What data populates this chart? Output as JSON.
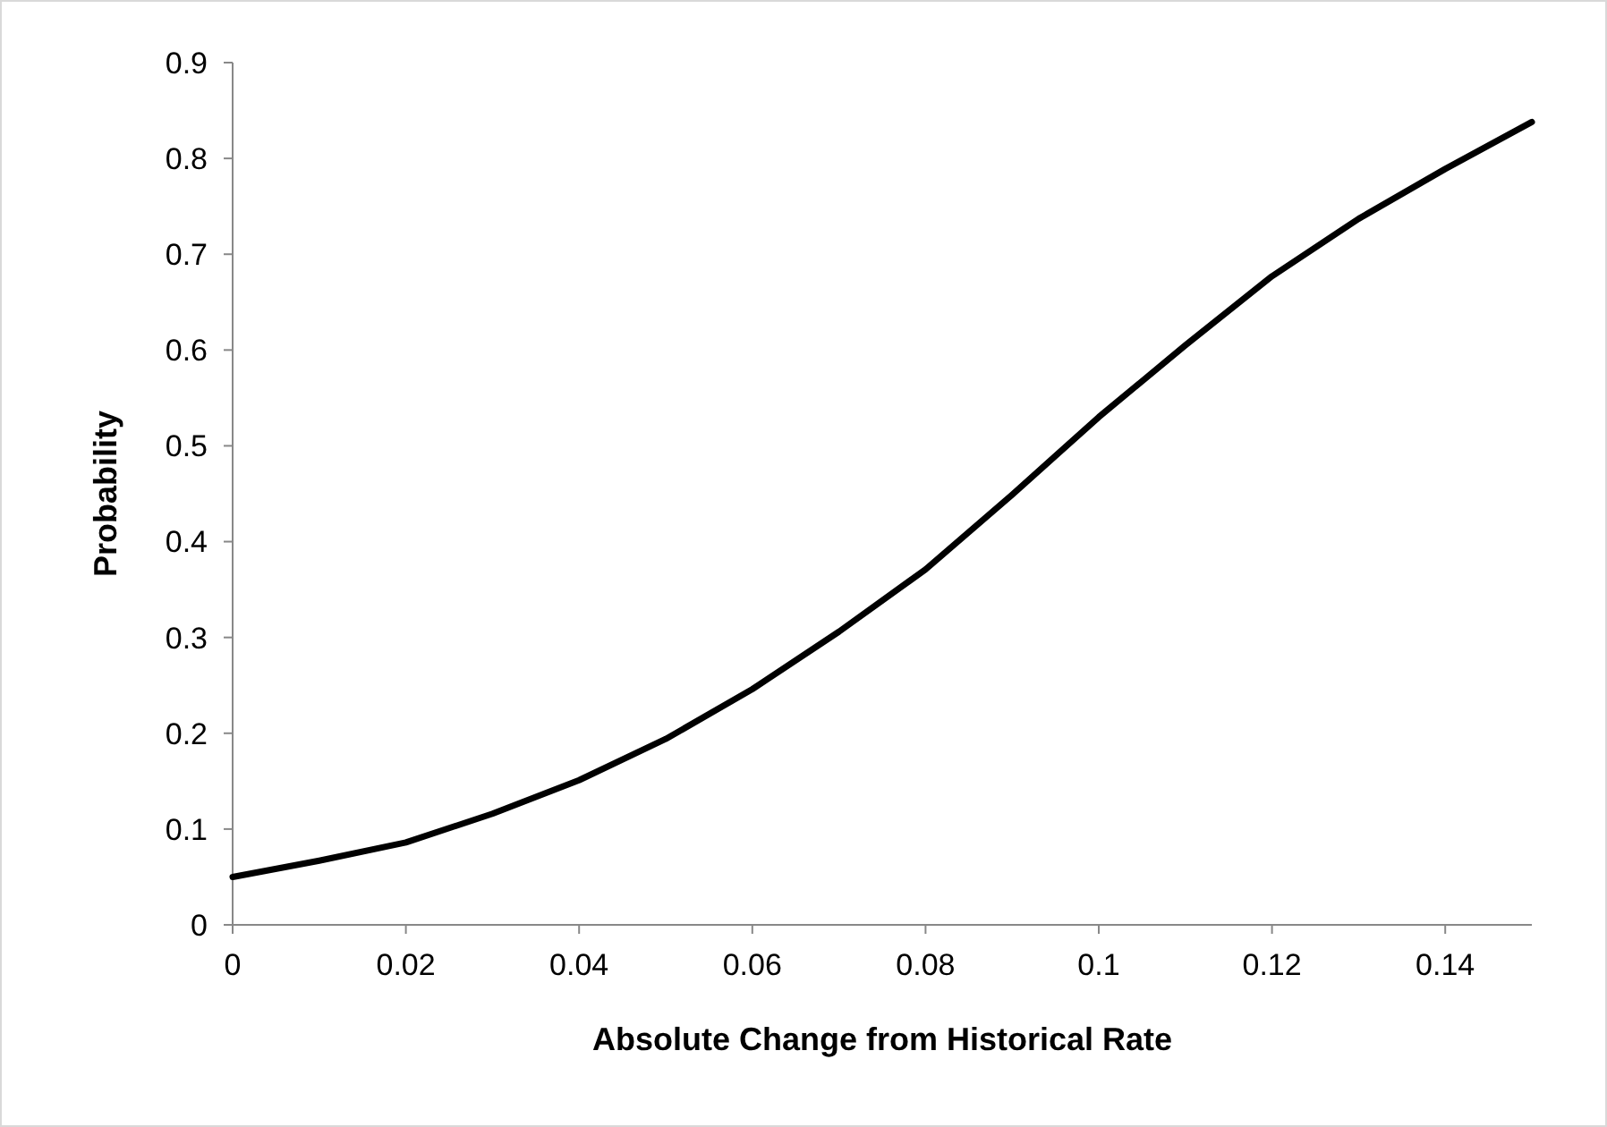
{
  "chart_data": {
    "type": "line",
    "xlabel": "Absolute Change from Historical Rate",
    "ylabel": "Probability",
    "x": [
      0,
      0.01,
      0.02,
      0.03,
      0.04,
      0.05,
      0.06,
      0.07,
      0.08,
      0.09,
      0.1,
      0.11,
      0.12,
      0.13,
      0.14,
      0.15
    ],
    "series": [
      {
        "color": "#000000",
        "values": [
          0.05,
          0.067,
          0.086,
          0.116,
          0.151,
          0.194,
          0.246,
          0.306,
          0.371,
          0.449,
          0.53,
          0.605,
          0.677,
          0.737,
          0.789,
          0.838
        ]
      }
    ],
    "xlim": [
      0,
      0.15
    ],
    "xticks": [
      0,
      0.02,
      0.04,
      0.06,
      0.08,
      0.1,
      0.12,
      0.14
    ],
    "ylim": [
      0,
      0.9
    ],
    "yticks": [
      0,
      0.1,
      0.2,
      0.3,
      0.4,
      0.5,
      0.6,
      0.7,
      0.8,
      0.9
    ],
    "grid": false,
    "marker": "none",
    "line_style": "solid"
  }
}
